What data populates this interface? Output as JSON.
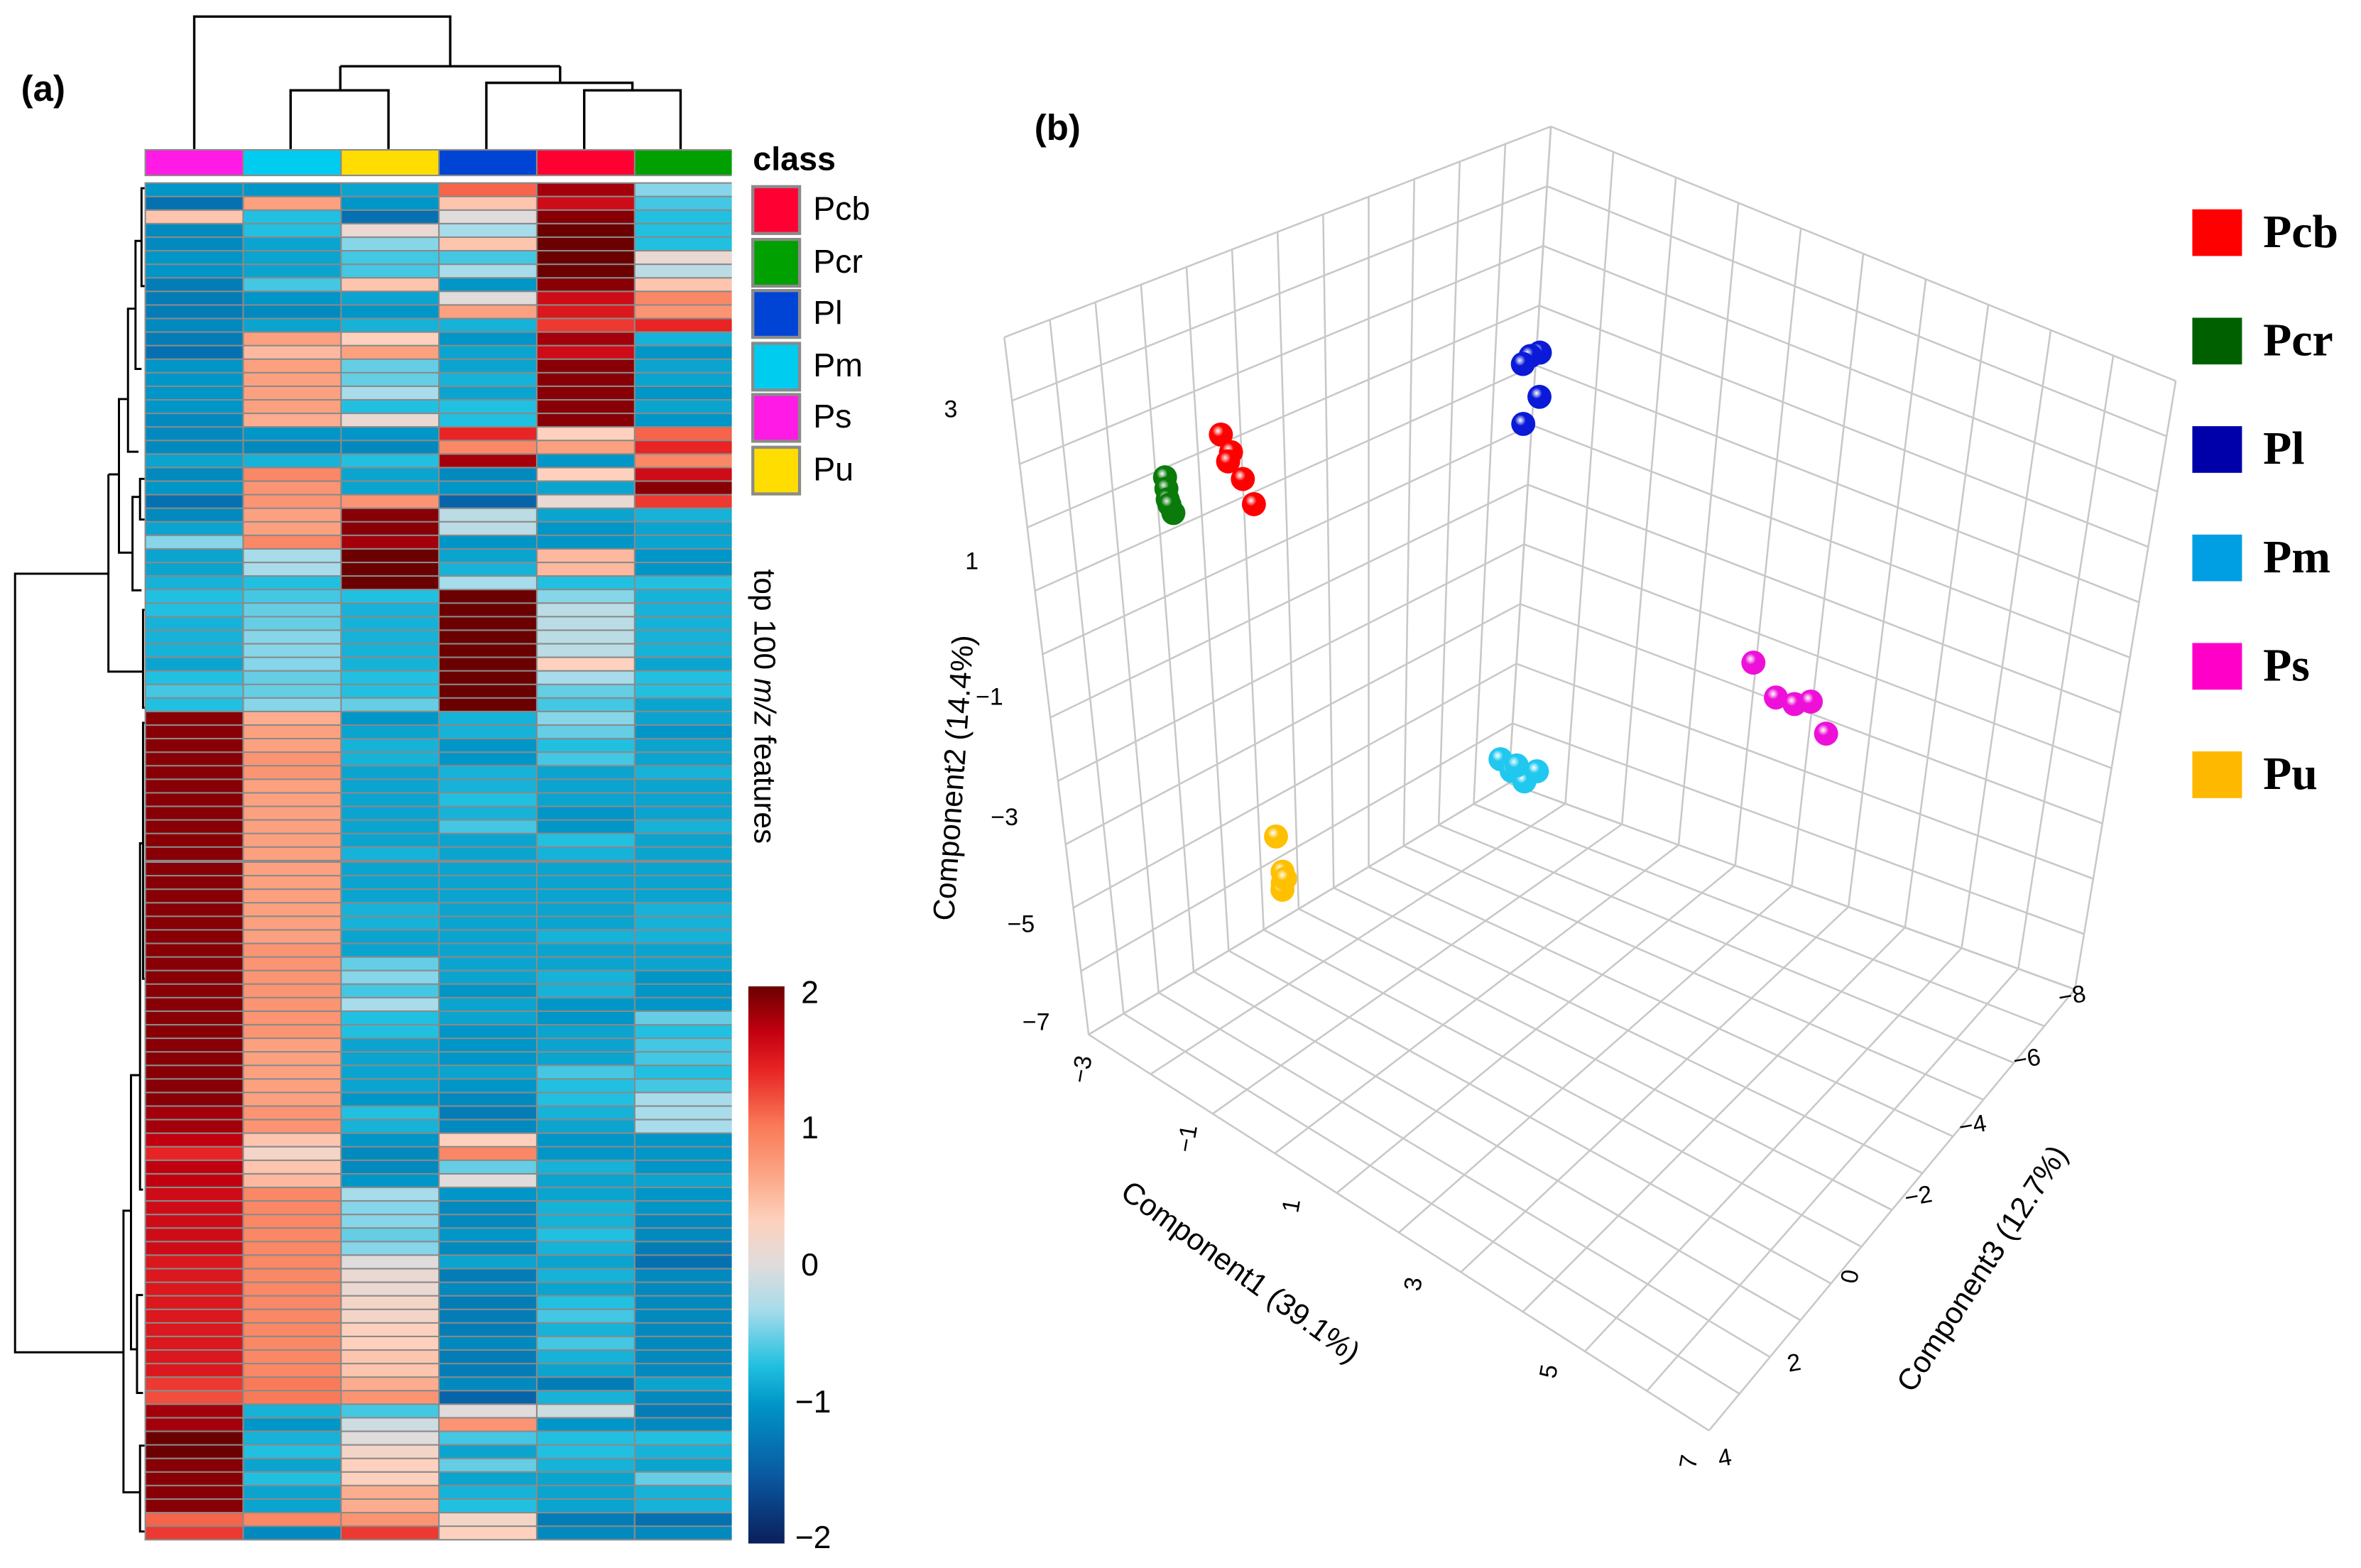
{
  "panel_a": {
    "label": "(a)",
    "legend_title": "class",
    "classes": [
      {
        "name": "Pcb",
        "color": "#ff0033"
      },
      {
        "name": "Pcr",
        "color": "#00a000"
      },
      {
        "name": "Pl",
        "color": "#0044d6"
      },
      {
        "name": "Pm",
        "color": "#00ccf0"
      },
      {
        "name": "Ps",
        "color": "#ff1ae6"
      },
      {
        "name": "Pu",
        "color": "#ffdd00"
      }
    ],
    "row_axis_label": {
      "pre": "top 100 ",
      "italic": "m/z",
      "post": " features"
    },
    "colorbar_ticks": [
      "2",
      "1",
      "0",
      "−1",
      "−2"
    ]
  },
  "panel_b": {
    "label": "(b)",
    "legend": [
      {
        "name": "Pcb",
        "color": "#ff0000"
      },
      {
        "name": "Pcr",
        "color": "#006000"
      },
      {
        "name": "Pl",
        "color": "#0000aa"
      },
      {
        "name": "Pm",
        "color": "#009fe3"
      },
      {
        "name": "Ps",
        "color": "#ff00c8"
      },
      {
        "name": "Pu",
        "color": "#ffb800"
      }
    ]
  },
  "chart_data": [
    {
      "type": "heatmap",
      "title": "",
      "columns": [
        "Ps",
        "Pm",
        "Pu",
        "Pl",
        "Pcb",
        "Pcr"
      ],
      "column_colors": [
        "#ff1ae6",
        "#00ccf0",
        "#ffdd00",
        "#0044d6",
        "#ff0033",
        "#00a000"
      ],
      "ylabel": "top 100 m/z features",
      "color_range": [
        -2,
        2
      ],
      "values": [
        [
          -1.0,
          -1.0,
          -0.9,
          1.1,
          1.8,
          -0.4
        ],
        [
          -1.3,
          0.7,
          -1.0,
          0.4,
          1.6,
          -0.6
        ],
        [
          0.4,
          -0.7,
          -1.3,
          0.0,
          1.9,
          -0.7
        ],
        [
          -1.1,
          -0.7,
          0.1,
          -0.3,
          2.0,
          -0.7
        ],
        [
          -1.1,
          -0.9,
          -0.4,
          0.4,
          2.0,
          -0.7
        ],
        [
          -1.0,
          -0.9,
          -0.6,
          -0.6,
          2.0,
          0.1
        ],
        [
          -1.0,
          -0.9,
          -0.6,
          -0.3,
          2.0,
          -0.2
        ],
        [
          -1.2,
          -0.6,
          0.4,
          -1.0,
          1.9,
          0.4
        ],
        [
          -1.2,
          -1.0,
          -0.9,
          0.0,
          1.6,
          0.9
        ],
        [
          -1.2,
          -1.1,
          -1.0,
          0.7,
          1.5,
          0.8
        ],
        [
          -1.1,
          -0.9,
          -0.8,
          -0.8,
          1.3,
          1.4
        ],
        [
          -1.2,
          0.7,
          0.3,
          -1.0,
          1.8,
          -0.8
        ],
        [
          -1.3,
          0.5,
          0.7,
          -0.9,
          1.6,
          -1.0
        ],
        [
          -1.0,
          0.7,
          -0.5,
          -0.9,
          1.9,
          -0.9
        ],
        [
          -1.0,
          0.7,
          -0.5,
          -0.8,
          1.9,
          -0.9
        ],
        [
          -1.0,
          0.7,
          -0.3,
          -0.9,
          1.9,
          -1.0
        ],
        [
          -1.0,
          0.7,
          -0.7,
          -0.7,
          1.9,
          -0.9
        ],
        [
          -1.1,
          0.6,
          0.1,
          -0.7,
          1.9,
          -1.0
        ],
        [
          -1.1,
          -1.0,
          -1.0,
          1.4,
          0.3,
          1.1
        ],
        [
          -1.1,
          -1.1,
          -1.1,
          0.9,
          0.7,
          1.4
        ],
        [
          -0.9,
          -0.8,
          -0.7,
          1.8,
          -1.0,
          0.9
        ],
        [
          -1.1,
          0.9,
          -0.9,
          -1.1,
          0.3,
          1.6
        ],
        [
          -1.0,
          0.8,
          -0.9,
          -1.0,
          -0.9,
          1.9
        ],
        [
          -1.3,
          0.8,
          0.8,
          -1.4,
          0.1,
          1.3
        ],
        [
          -1.1,
          0.7,
          1.9,
          -0.2,
          -0.9,
          -0.8
        ],
        [
          -0.9,
          0.7,
          1.9,
          -0.2,
          -1.0,
          -0.9
        ],
        [
          -0.4,
          0.9,
          1.8,
          -1.0,
          -1.0,
          -0.9
        ],
        [
          -0.9,
          -0.3,
          2.0,
          -0.9,
          0.5,
          -1.0
        ],
        [
          -0.9,
          -0.3,
          2.0,
          -0.8,
          0.5,
          -1.0
        ],
        [
          -0.8,
          -0.7,
          2.0,
          -0.3,
          -0.7,
          -0.7
        ],
        [
          -0.7,
          -0.6,
          -0.7,
          2.0,
          -0.4,
          -0.8
        ],
        [
          -0.7,
          -0.5,
          -0.8,
          2.0,
          -0.2,
          -0.8
        ],
        [
          -0.8,
          -0.5,
          -0.8,
          2.0,
          -0.2,
          -0.8
        ],
        [
          -0.8,
          -0.4,
          -0.8,
          2.0,
          -0.2,
          -0.8
        ],
        [
          -0.8,
          -0.4,
          -0.8,
          2.0,
          -0.2,
          -0.8
        ],
        [
          -0.9,
          -0.4,
          -0.8,
          2.0,
          0.3,
          -0.9
        ],
        [
          -0.7,
          -0.5,
          -0.7,
          2.0,
          -0.3,
          -0.7
        ],
        [
          -0.6,
          -0.5,
          -0.7,
          2.0,
          -0.5,
          -0.7
        ],
        [
          -0.7,
          -0.4,
          -0.5,
          2.0,
          -0.6,
          -0.9
        ],
        [
          1.9,
          0.6,
          -1.0,
          -0.8,
          -0.4,
          -0.9
        ],
        [
          1.9,
          0.7,
          -0.9,
          -0.8,
          -0.5,
          -1.0
        ],
        [
          1.9,
          0.7,
          -0.8,
          -1.0,
          -0.7,
          -0.9
        ],
        [
          1.9,
          0.8,
          -0.8,
          -1.0,
          -0.6,
          -0.9
        ],
        [
          1.9,
          0.8,
          -0.9,
          -0.8,
          -0.9,
          -0.8
        ],
        [
          1.9,
          0.7,
          -0.9,
          -0.8,
          -0.9,
          -0.9
        ],
        [
          1.9,
          0.7,
          -0.9,
          -0.7,
          -0.9,
          -0.9
        ],
        [
          1.9,
          0.7,
          -0.9,
          -0.8,
          -1.0,
          -0.9
        ],
        [
          1.9,
          0.7,
          -0.9,
          -0.6,
          -1.0,
          -0.8
        ],
        [
          1.9,
          0.7,
          -0.9,
          -0.9,
          -0.7,
          -0.9
        ],
        [
          1.9,
          0.7,
          -0.8,
          -0.9,
          -0.8,
          -0.9
        ],
        [
          1.9,
          0.7,
          -0.9,
          -0.9,
          -0.9,
          -0.9
        ],
        [
          1.9,
          0.7,
          -0.9,
          -0.9,
          -0.9,
          -0.9
        ],
        [
          1.9,
          0.7,
          -0.9,
          -0.9,
          -0.9,
          -0.9
        ],
        [
          1.9,
          0.7,
          -0.8,
          -0.9,
          -0.9,
          -0.8
        ],
        [
          1.9,
          0.7,
          -0.8,
          -0.9,
          -0.9,
          -0.8
        ],
        [
          1.9,
          0.7,
          -0.9,
          -0.9,
          -0.8,
          -0.8
        ],
        [
          1.9,
          0.8,
          -0.9,
          -0.9,
          -0.9,
          -0.9
        ],
        [
          1.9,
          0.8,
          -0.5,
          -0.9,
          -0.9,
          -0.9
        ],
        [
          1.9,
          0.8,
          -0.4,
          -0.9,
          -0.8,
          -1.0
        ],
        [
          1.9,
          0.8,
          -0.6,
          -1.0,
          -0.8,
          -1.0
        ],
        [
          1.9,
          0.8,
          -0.3,
          -0.9,
          -1.0,
          -1.0
        ],
        [
          1.9,
          0.8,
          -0.7,
          -0.9,
          -1.0,
          -0.5
        ],
        [
          1.9,
          0.8,
          -0.7,
          -1.0,
          -0.9,
          -0.7
        ],
        [
          1.9,
          0.7,
          -0.9,
          -1.0,
          -0.9,
          -0.6
        ],
        [
          1.9,
          0.7,
          -0.9,
          -1.0,
          -0.9,
          -0.6
        ],
        [
          1.9,
          0.7,
          -0.9,
          -0.9,
          -0.6,
          -0.7
        ],
        [
          1.9,
          0.7,
          -0.9,
          -1.0,
          -0.7,
          -0.6
        ],
        [
          1.9,
          0.7,
          -1.0,
          -1.1,
          -0.7,
          -0.3
        ],
        [
          1.8,
          0.8,
          -0.7,
          -1.2,
          -0.8,
          -0.3
        ],
        [
          1.8,
          0.8,
          -0.8,
          -1.1,
          -0.9,
          -0.3
        ],
        [
          1.7,
          0.4,
          -1.0,
          0.3,
          -1.0,
          -1.0
        ],
        [
          1.4,
          0.2,
          -1.1,
          0.9,
          -1.0,
          -1.0
        ],
        [
          1.7,
          0.4,
          -1.1,
          -0.5,
          -0.8,
          -1.0
        ],
        [
          1.7,
          0.5,
          -1.0,
          0.0,
          -0.9,
          -0.9
        ],
        [
          1.6,
          0.9,
          -0.3,
          -1.0,
          -0.9,
          -1.0
        ],
        [
          1.6,
          0.9,
          -0.4,
          -1.1,
          -0.8,
          -1.0
        ],
        [
          1.6,
          0.9,
          -0.4,
          -1.1,
          -0.8,
          -1.1
        ],
        [
          1.6,
          0.9,
          -0.5,
          -1.0,
          -0.7,
          -1.1
        ],
        [
          1.6,
          0.9,
          -0.4,
          -1.1,
          -0.8,
          -1.2
        ],
        [
          1.5,
          0.9,
          0.0,
          -0.9,
          -0.9,
          -1.3
        ],
        [
          1.5,
          0.9,
          0.1,
          -1.2,
          -0.8,
          -1.1
        ],
        [
          1.5,
          0.9,
          0.1,
          -1.1,
          -0.9,
          -1.1
        ],
        [
          1.5,
          0.9,
          0.2,
          -1.2,
          -0.7,
          -1.1
        ],
        [
          1.5,
          0.9,
          0.2,
          -1.2,
          -0.6,
          -1.1
        ],
        [
          1.5,
          0.9,
          0.3,
          -1.2,
          -0.8,
          -1.1
        ],
        [
          1.5,
          0.9,
          0.3,
          -1.1,
          -0.6,
          -1.1
        ],
        [
          1.5,
          0.9,
          0.4,
          -1.2,
          -0.8,
          -1.1
        ],
        [
          1.5,
          0.9,
          0.4,
          -1.2,
          -0.9,
          -1.1
        ],
        [
          1.3,
          1.0,
          0.6,
          -1.1,
          -1.2,
          -0.9
        ],
        [
          1.2,
          1.0,
          0.8,
          -1.4,
          -0.8,
          -1.1
        ],
        [
          1.8,
          -0.8,
          -0.6,
          0.0,
          -0.1,
          -1.2
        ],
        [
          1.8,
          -1.0,
          -0.1,
          0.8,
          -1.0,
          -1.1
        ],
        [
          2.0,
          -0.8,
          0.0,
          -0.6,
          -0.7,
          -0.7
        ],
        [
          2.0,
          -0.7,
          0.2,
          -0.9,
          -0.7,
          -0.8
        ],
        [
          1.9,
          -0.9,
          0.3,
          -0.5,
          -0.8,
          -0.9
        ],
        [
          1.9,
          -0.7,
          0.3,
          -0.9,
          -0.9,
          -0.5
        ],
        [
          1.9,
          -0.9,
          0.6,
          -0.8,
          -0.9,
          -0.8
        ],
        [
          1.9,
          -0.9,
          0.6,
          -0.7,
          -0.9,
          -0.8
        ],
        [
          1.1,
          0.9,
          0.8,
          0.2,
          -1.2,
          -1.3
        ],
        [
          1.3,
          -1.1,
          1.3,
          0.3,
          -1.1,
          -1.1
        ]
      ]
    },
    {
      "type": "scatter",
      "subtype": "3d",
      "xlabel": "Component1 (39.1%)",
      "ylabel": "Component2 (14.4%)",
      "zlabel": "Component3 (12.7%)",
      "xlim": [
        -3,
        7
      ],
      "ylim": [
        -7,
        4
      ],
      "zlim": [
        -8,
        4
      ],
      "xticks": [
        "−3",
        "−1",
        "1",
        "3",
        "5",
        "7"
      ],
      "yticks": [
        "3",
        "1",
        "−1",
        "−3",
        "−5",
        "−7"
      ],
      "zticks": [
        "−8",
        "−6",
        "−4",
        "−2",
        "0",
        "2",
        "4"
      ],
      "grid": true,
      "legend_position": "right",
      "series": [
        {
          "name": "Pcb",
          "color": "#ff0000",
          "points": [
            [
              -1.39,
              2.48,
              1
            ],
            [
              -1.25,
              2.29,
              1
            ],
            [
              -1.32,
              2.1,
              1
            ],
            [
              -1.1,
              1.96,
              1
            ],
            [
              -0.96,
              1.65,
              1
            ]
          ]
        },
        {
          "name": "Pcr",
          "color": "#0a7a0a",
          "points": [
            [
              -1.8,
              1.88,
              2
            ],
            [
              -1.8,
              1.7,
              2
            ],
            [
              -1.8,
              1.53,
              2
            ],
            [
              -1.73,
              1.36,
              2
            ],
            [
              -1.78,
              1.46,
              2
            ]
          ]
        },
        {
          "name": "Pl",
          "color": "#0a1ad8",
          "points": [
            [
              0.42,
              2.92,
              -5
            ],
            [
              0.25,
              2.76,
              -5
            ],
            [
              0.1,
              2.54,
              -5
            ],
            [
              0.32,
              2.16,
              -5
            ],
            [
              -0.02,
              1.52,
              -5
            ]
          ]
        },
        {
          "name": "Pm",
          "color": "#20c8f0",
          "points": [
            [
              -0.47,
              -3.72,
              -4
            ],
            [
              -0.3,
              -3.8,
              -4
            ],
            [
              -0.1,
              -3.84,
              -4
            ],
            [
              0.14,
              -3.53,
              -4
            ],
            [
              -0.2,
              -3.65,
              -4
            ]
          ]
        },
        {
          "name": "Ps",
          "color": "#ee10d8",
          "points": [
            [
              2.84,
              -0.79,
              -6
            ],
            [
              3.16,
              -1.14,
              -6
            ],
            [
              3.47,
              -1.05,
              -6
            ],
            [
              3.76,
              -0.83,
              -6
            ],
            [
              3.96,
              -1.21,
              -6
            ]
          ]
        },
        {
          "name": "Pu",
          "color": "#ffc000",
          "points": [
            [
              -0.62,
              -3.05,
              2
            ],
            [
              -0.58,
              -3.58,
              2
            ],
            [
              -0.6,
              -3.77,
              2
            ],
            [
              -0.62,
              -3.89,
              2
            ],
            [
              -0.55,
              -3.67,
              2
            ]
          ]
        }
      ]
    }
  ]
}
